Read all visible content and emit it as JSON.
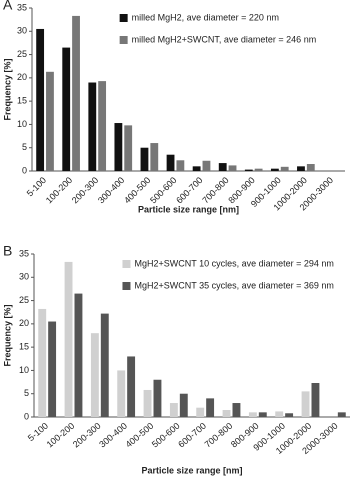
{
  "chart_data": [
    {
      "type": "bar",
      "panel": "A",
      "y_label": "Frequency [%]",
      "x_label": "Particle size range [nm]",
      "categories": [
        "5-100",
        "100-200",
        "200-300",
        "300-400",
        "400-500",
        "500-600",
        "600-700",
        "700-800",
        "800-900",
        "900-1000",
        "1000-2000",
        "2000-3000"
      ],
      "series": [
        {
          "name": "milled MgH2, ave diameter = 220 nm",
          "color": "#111111",
          "values": [
            30.5,
            26.5,
            19,
            10.3,
            5,
            3.5,
            1,
            1.7,
            0.3,
            0.5,
            1,
            0
          ]
        },
        {
          "name": "milled MgH2+SWCNT, ave diameter = 246 nm",
          "color": "#777777",
          "values": [
            21.3,
            33.3,
            19.3,
            9.8,
            6,
            2.3,
            2.2,
            1.2,
            0.5,
            0.9,
            1.5,
            0
          ]
        }
      ],
      "ylim": [
        0,
        35
      ],
      "yticks": [
        0,
        5,
        10,
        15,
        20,
        25,
        30,
        35
      ],
      "grid": false,
      "legend": "upper right"
    },
    {
      "type": "bar",
      "panel": "B",
      "y_label": "Frequency [%]",
      "x_label": "Particle size range [nm]",
      "categories": [
        "5-100",
        "100-200",
        "200-300",
        "300-400",
        "400-500",
        "500-600",
        "600-700",
        "700-800",
        "800-900",
        "900-1000",
        "1000-2000",
        "2000-3000"
      ],
      "series": [
        {
          "name": "MgH2+SWCNT 10 cycles, ave diameter = 294 nm",
          "color": "#d0d0d0",
          "values": [
            23.2,
            33.3,
            18,
            10,
            5.8,
            3,
            2,
            1.5,
            1,
            1.2,
            5.5,
            0
          ]
        },
        {
          "name": "MgH2+SWCNT 35 cycles, ave diameter = 369 nm",
          "color": "#555555",
          "values": [
            20.5,
            26.5,
            22.2,
            13,
            8,
            5,
            4,
            3,
            1,
            0.8,
            7.3,
            1
          ]
        }
      ],
      "ylim": [
        0,
        35
      ],
      "yticks": [
        0,
        5,
        10,
        15,
        20,
        25,
        30,
        35
      ],
      "grid": false,
      "legend": "upper right"
    }
  ]
}
